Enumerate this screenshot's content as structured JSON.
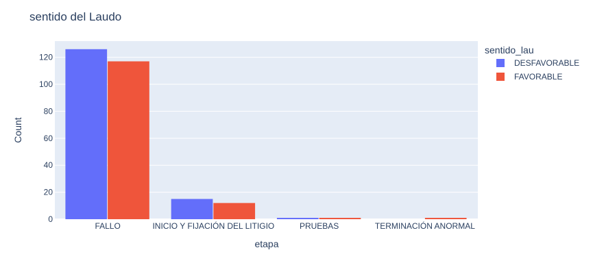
{
  "chart_data": {
    "type": "bar",
    "title": "sentido del Laudo",
    "xlabel": "etapa",
    "ylabel": "Count",
    "ylim": [
      0,
      132
    ],
    "yticks": [
      0,
      20,
      40,
      60,
      80,
      100,
      120
    ],
    "grid": true,
    "barmode": "group",
    "categories": [
      "FALLO",
      "INICIO Y FIJACIÓN DEL LITIGIO",
      "PRUEBAS",
      "TERMINACIÓN ANORMAL"
    ],
    "legend": {
      "title": "sentido_lau",
      "position": "right"
    },
    "series": [
      {
        "name": "DESFAVORABLE",
        "color": "#636efa",
        "values": [
          126,
          15,
          1,
          0
        ]
      },
      {
        "name": "FAVORABLE",
        "color": "#ef553b",
        "values": [
          117,
          12,
          1,
          1
        ]
      }
    ],
    "colors": {
      "plot_bg": "#e5ecf6",
      "text": "#2a3f5f",
      "grid": "#ffffff"
    }
  }
}
